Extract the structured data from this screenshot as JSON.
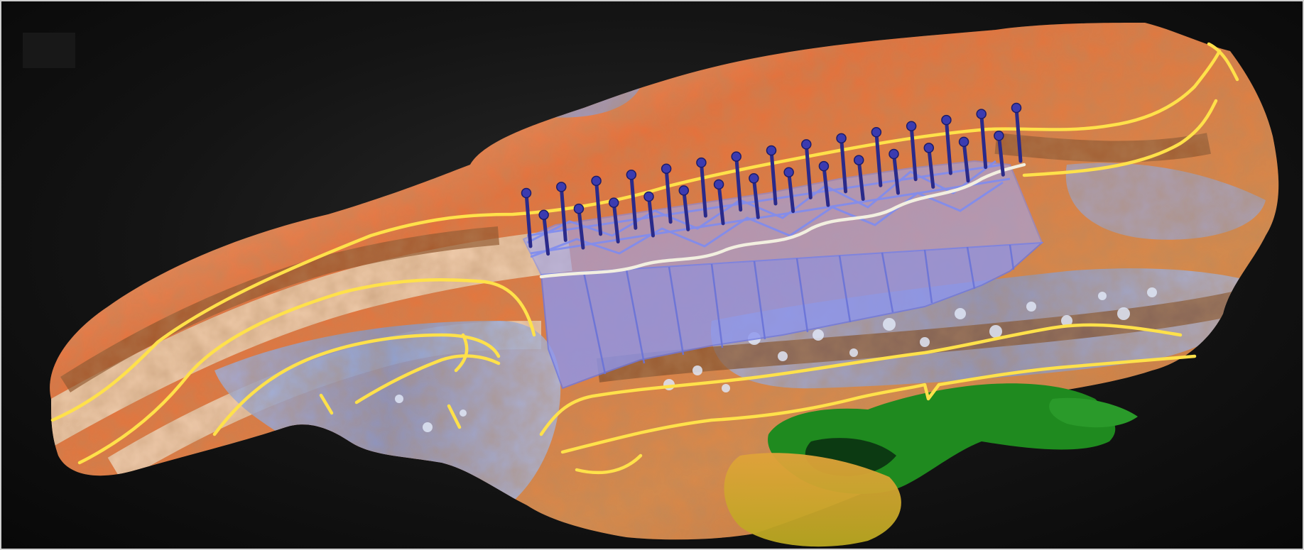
{
  "image": {
    "subject": "",
    "colors": {
      "background": "#111111",
      "terrain_orange": "#e8703a",
      "terrain_blue": "#7e98d6",
      "terrain_cream": "#efd6b6",
      "terrain_brown": "#8a5028",
      "vegetation_green": "#1f8a1f",
      "water_yellow": "#c9b324",
      "contour_yellow": "#ffe14a",
      "structure_blue": "#7f8cf0",
      "post_navy": "#2a2a8a",
      "crest_white": "#f2efe0"
    },
    "post_count": 29,
    "panel_count": 12,
    "icons": [
      "terrain-model",
      "retaining-structure",
      "contour-line",
      "anchor-post"
    ]
  }
}
